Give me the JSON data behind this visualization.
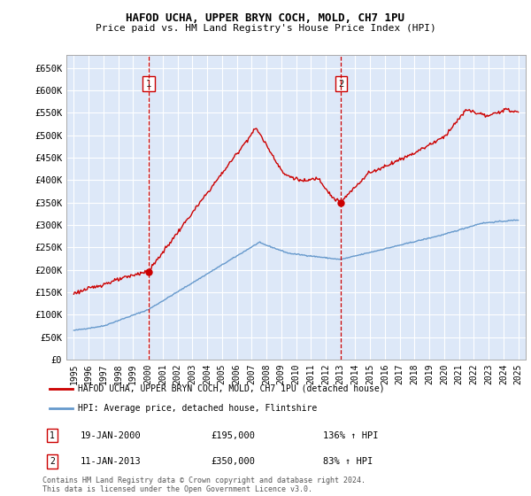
{
  "title": "HAFOD UCHA, UPPER BRYN COCH, MOLD, CH7 1PU",
  "subtitle": "Price paid vs. HM Land Registry's House Price Index (HPI)",
  "legend_line1": "HAFOD UCHA, UPPER BRYN COCH, MOLD, CH7 1PU (detached house)",
  "legend_line2": "HPI: Average price, detached house, Flintshire",
  "annotation1_date": "19-JAN-2000",
  "annotation1_price": "£195,000",
  "annotation1_hpi": "136% ↑ HPI",
  "annotation2_date": "11-JAN-2013",
  "annotation2_price": "£350,000",
  "annotation2_hpi": "83% ↑ HPI",
  "footer": "Contains HM Land Registry data © Crown copyright and database right 2024.\nThis data is licensed under the Open Government Licence v3.0.",
  "red_color": "#cc0000",
  "blue_color": "#6699cc",
  "bg_color": "#dde8f8",
  "grid_color": "#ffffff",
  "ylim": [
    0,
    680000
  ],
  "yticks": [
    0,
    50000,
    100000,
    150000,
    200000,
    250000,
    300000,
    350000,
    400000,
    450000,
    500000,
    550000,
    600000,
    650000
  ],
  "ytick_labels": [
    "£0",
    "£50K",
    "£100K",
    "£150K",
    "£200K",
    "£250K",
    "£300K",
    "£350K",
    "£400K",
    "£450K",
    "£500K",
    "£550K",
    "£600K",
    "£650K"
  ],
  "sale1_x": 2000.05,
  "sale1_y": 195000,
  "sale2_x": 2013.04,
  "sale2_y": 350000,
  "xmin": 1994.5,
  "xmax": 2025.5
}
